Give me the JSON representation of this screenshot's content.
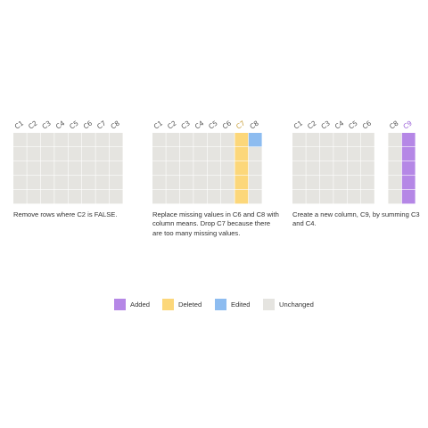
{
  "colors": {
    "added": "#b587e6",
    "deleted": "#fcd77a",
    "edited": "#8dbcf0",
    "unchanged": "#e5e4e0",
    "header_text": "#555555"
  },
  "panels": [
    {
      "columns": [
        {
          "label": "C1",
          "state": "unchanged"
        },
        {
          "label": "C2",
          "state": "unchanged"
        },
        {
          "label": "C3",
          "state": "unchanged"
        },
        {
          "label": "C4",
          "state": "unchanged"
        },
        {
          "label": "C5",
          "state": "unchanged"
        },
        {
          "label": "C6",
          "state": "unchanged"
        },
        {
          "label": "C7",
          "state": "unchanged"
        },
        {
          "label": "C8",
          "state": "unchanged"
        }
      ],
      "rows": 5,
      "caption": "Remove rows where C2 is FALSE."
    },
    {
      "columns": [
        {
          "label": "C1",
          "state": "unchanged"
        },
        {
          "label": "C2",
          "state": "unchanged"
        },
        {
          "label": "C3",
          "state": "unchanged"
        },
        {
          "label": "C4",
          "state": "unchanged"
        },
        {
          "label": "C5",
          "state": "unchanged"
        },
        {
          "label": "C6",
          "state": "unchanged"
        },
        {
          "label": "C7",
          "state": "deleted"
        },
        {
          "label": "C8",
          "state": "unchanged",
          "edited_rows": [
            0
          ]
        }
      ],
      "rows": 5,
      "caption": "Replace missing values in C6 and C8 with column means. Drop C7 because there are too many missing values."
    },
    {
      "columns": [
        {
          "label": "C1",
          "state": "unchanged"
        },
        {
          "label": "C2",
          "state": "unchanged"
        },
        {
          "label": "C3",
          "state": "unchanged"
        },
        {
          "label": "C4",
          "state": "unchanged"
        },
        {
          "label": "C5",
          "state": "unchanged"
        },
        {
          "label": "C6",
          "state": "unchanged"
        },
        {
          "label": "C8",
          "state": "unchanged",
          "gap_before": true
        },
        {
          "label": "C9",
          "state": "added"
        }
      ],
      "rows": 5,
      "caption": "Create a new column, C9, by summing C3 and C4."
    }
  ],
  "legend": [
    {
      "label": "Added",
      "key": "added"
    },
    {
      "label": "Deleted",
      "key": "deleted"
    },
    {
      "label": "Edited",
      "key": "edited"
    },
    {
      "label": "Unchanged",
      "key": "unchanged"
    }
  ]
}
